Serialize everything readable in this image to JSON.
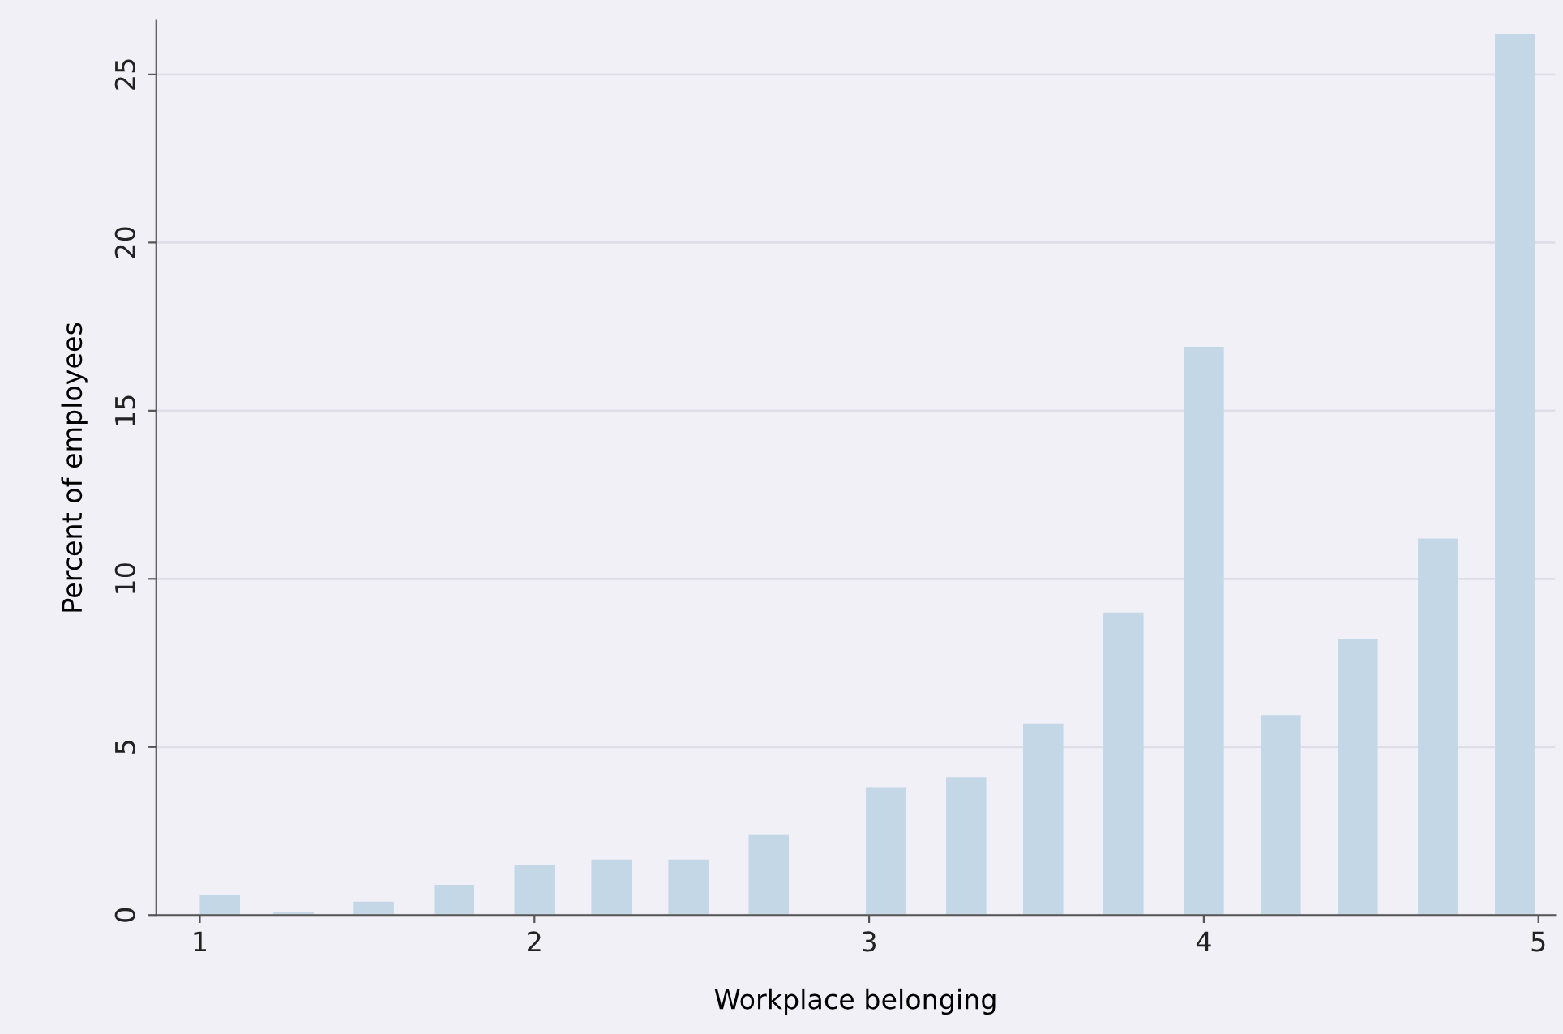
{
  "chart_data": {
    "type": "bar",
    "xlabel": "Workplace belonging",
    "ylabel": "Percent of employees",
    "x": [
      1.06,
      1.28,
      1.52,
      1.76,
      2.0,
      2.23,
      2.46,
      2.7,
      3.05,
      3.29,
      3.52,
      3.76,
      4.0,
      4.23,
      4.46,
      4.7,
      4.93
    ],
    "values": [
      0.6,
      0.1,
      0.4,
      0.9,
      1.5,
      1.65,
      1.65,
      2.4,
      3.8,
      4.1,
      5.7,
      9.0,
      16.9,
      5.95,
      8.2,
      11.2,
      26.2
    ],
    "color": "#c3d7e6",
    "xlim": [
      0.87,
      5.05
    ],
    "xticks": [
      1,
      2,
      3,
      4,
      5
    ],
    "ylim": [
      0,
      26.6
    ],
    "yticks": [
      0,
      5,
      10,
      15,
      20,
      25
    ],
    "grid": "y"
  }
}
